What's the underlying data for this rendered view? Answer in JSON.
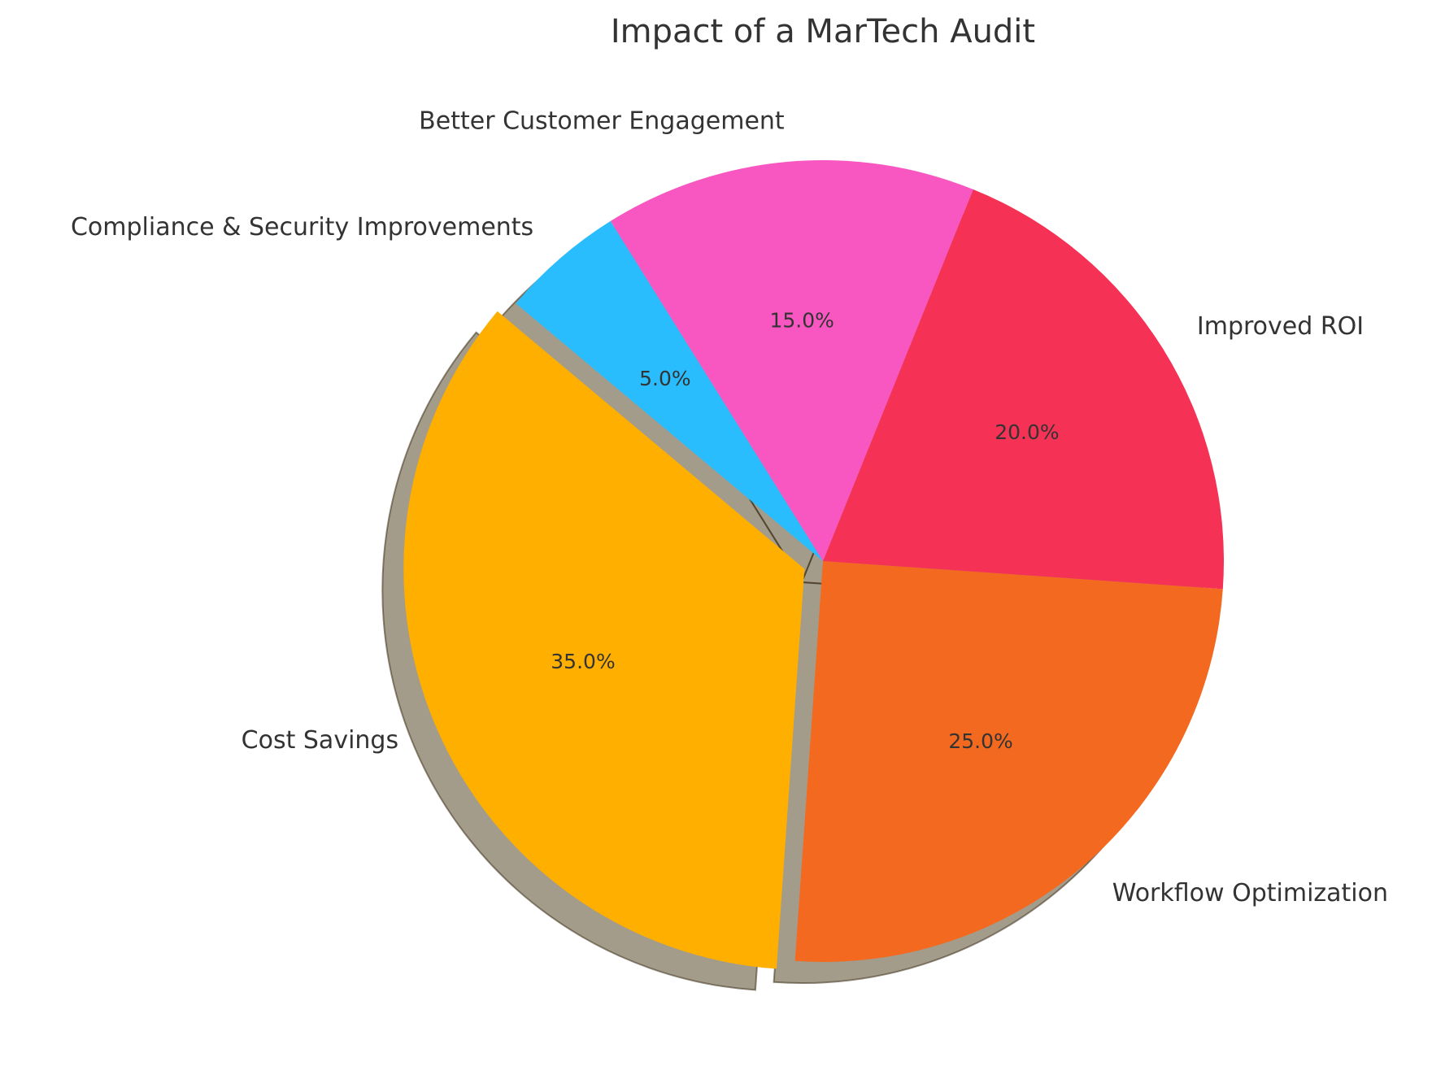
{
  "chart_data": {
    "type": "pie",
    "title": "Impact of a MarTech Audit",
    "start_angle_deg": 140,
    "direction": "counterclockwise",
    "shadow": true,
    "slices": [
      {
        "label": "Cost Savings",
        "value": 35,
        "pct_label": "35.0%",
        "color": "#FFAF00",
        "exploded": true
      },
      {
        "label": "Workflow Optimization",
        "value": 25,
        "pct_label": "25.0%",
        "color": "#F46920",
        "exploded": false
      },
      {
        "label": "Improved ROI",
        "value": 20,
        "pct_label": "20.0%",
        "color": "#F53255",
        "exploded": false
      },
      {
        "label": "Better Customer Engagement",
        "value": 15,
        "pct_label": "15.0%",
        "color": "#F857C1",
        "exploded": false
      },
      {
        "label": "Compliance & Security Improvements",
        "value": 5,
        "pct_label": "5.0%",
        "color": "#29BDFD",
        "exploded": false
      }
    ]
  }
}
